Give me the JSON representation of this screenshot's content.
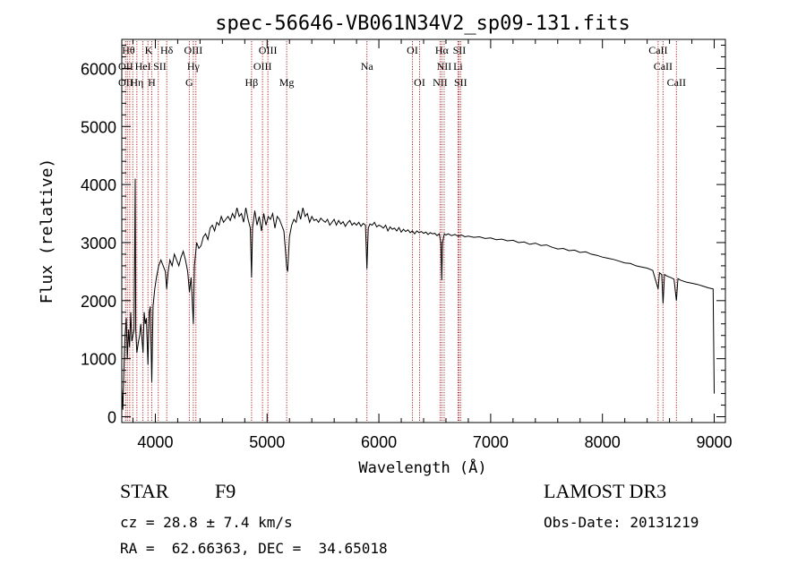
{
  "chart_data": {
    "type": "line",
    "title": "spec-56646-VB061N34V2_sp09-131.fits",
    "xlabel": "Wavelength (Å)",
    "ylabel": "Flux (relative)",
    "xlim": [
      3700,
      9100
    ],
    "ylim": [
      -100,
      6500
    ],
    "xticks": [
      4000,
      5000,
      6000,
      7000,
      8000,
      9000
    ],
    "xtick_labels": [
      "4000",
      "5000",
      "6000",
      "7000",
      "8000",
      "9000"
    ],
    "yticks": [
      0,
      1000,
      2000,
      3000,
      4000,
      5000,
      6000
    ],
    "ytick_labels": [
      "0",
      "1000",
      "2000",
      "3000",
      "4000",
      "5000",
      "6000"
    ],
    "x_minor_step": 200,
    "y_minor_step": 200,
    "series": [
      {
        "name": "spectrum",
        "color": "#000000",
        "points": [
          [
            3700,
            500
          ],
          [
            3710,
            120
          ],
          [
            3720,
            900
          ],
          [
            3730,
            1400
          ],
          [
            3740,
            1700
          ],
          [
            3750,
            1000
          ],
          [
            3760,
            1500
          ],
          [
            3770,
            1200
          ],
          [
            3780,
            1800
          ],
          [
            3790,
            1300
          ],
          [
            3800,
            1400
          ],
          [
            3810,
            1500
          ],
          [
            3820,
            4100
          ],
          [
            3825,
            1500
          ],
          [
            3835,
            1100
          ],
          [
            3850,
            1300
          ],
          [
            3860,
            1400
          ],
          [
            3870,
            1600
          ],
          [
            3880,
            1350
          ],
          [
            3890,
            1100
          ],
          [
            3900,
            1800
          ],
          [
            3910,
            1600
          ],
          [
            3920,
            1700
          ],
          [
            3934,
            900
          ],
          [
            3945,
            1800
          ],
          [
            3955,
            1900
          ],
          [
            3968,
            600
          ],
          [
            3980,
            1900
          ],
          [
            3995,
            2200
          ],
          [
            4010,
            2400
          ],
          [
            4030,
            2600
          ],
          [
            4050,
            2700
          ],
          [
            4070,
            2600
          ],
          [
            4090,
            2500
          ],
          [
            4101,
            2200
          ],
          [
            4115,
            2500
          ],
          [
            4130,
            2700
          ],
          [
            4150,
            2600
          ],
          [
            4170,
            2800
          ],
          [
            4190,
            2700
          ],
          [
            4210,
            2600
          ],
          [
            4230,
            2750
          ],
          [
            4250,
            2850
          ],
          [
            4270,
            2700
          ],
          [
            4290,
            2500
          ],
          [
            4305,
            2150
          ],
          [
            4320,
            2400
          ],
          [
            4340,
            1600
          ],
          [
            4350,
            2600
          ],
          [
            4370,
            3000
          ],
          [
            4390,
            2900
          ],
          [
            4410,
            2950
          ],
          [
            4430,
            3100
          ],
          [
            4450,
            3150
          ],
          [
            4470,
            3050
          ],
          [
            4490,
            3250
          ],
          [
            4510,
            3300
          ],
          [
            4530,
            3200
          ],
          [
            4550,
            3350
          ],
          [
            4570,
            3300
          ],
          [
            4590,
            3450
          ],
          [
            4610,
            3350
          ],
          [
            4630,
            3400
          ],
          [
            4650,
            3450
          ],
          [
            4670,
            3380
          ],
          [
            4690,
            3500
          ],
          [
            4710,
            3420
          ],
          [
            4730,
            3600
          ],
          [
            4750,
            3450
          ],
          [
            4770,
            3500
          ],
          [
            4790,
            3350
          ],
          [
            4810,
            3600
          ],
          [
            4830,
            3400
          ],
          [
            4850,
            3250
          ],
          [
            4861,
            2400
          ],
          [
            4870,
            3250
          ],
          [
            4890,
            3550
          ],
          [
            4910,
            3300
          ],
          [
            4930,
            3450
          ],
          [
            4950,
            3200
          ],
          [
            4970,
            3500
          ],
          [
            4990,
            3300
          ],
          [
            5010,
            3450
          ],
          [
            5030,
            3400
          ],
          [
            5050,
            3500
          ],
          [
            5070,
            3250
          ],
          [
            5090,
            3450
          ],
          [
            5110,
            3400
          ],
          [
            5130,
            3300
          ],
          [
            5150,
            3200
          ],
          [
            5167,
            2800
          ],
          [
            5173,
            2600
          ],
          [
            5184,
            2500
          ],
          [
            5200,
            3100
          ],
          [
            5220,
            3300
          ],
          [
            5240,
            3400
          ],
          [
            5260,
            3350
          ],
          [
            5280,
            3550
          ],
          [
            5300,
            3400
          ],
          [
            5320,
            3600
          ],
          [
            5340,
            3450
          ],
          [
            5360,
            3500
          ],
          [
            5380,
            3350
          ],
          [
            5400,
            3450
          ],
          [
            5420,
            3380
          ],
          [
            5440,
            3400
          ],
          [
            5460,
            3350
          ],
          [
            5480,
            3420
          ],
          [
            5500,
            3380
          ],
          [
            5520,
            3350
          ],
          [
            5540,
            3400
          ],
          [
            5560,
            3300
          ],
          [
            5580,
            3350
          ],
          [
            5600,
            3400
          ],
          [
            5620,
            3300
          ],
          [
            5640,
            3380
          ],
          [
            5660,
            3320
          ],
          [
            5680,
            3360
          ],
          [
            5700,
            3280
          ],
          [
            5720,
            3340
          ],
          [
            5740,
            3380
          ],
          [
            5760,
            3300
          ],
          [
            5780,
            3340
          ],
          [
            5800,
            3300
          ],
          [
            5820,
            3350
          ],
          [
            5840,
            3280
          ],
          [
            5860,
            3330
          ],
          [
            5880,
            3300
          ],
          [
            5893,
            2550
          ],
          [
            5905,
            3250
          ],
          [
            5920,
            3320
          ],
          [
            5940,
            3300
          ],
          [
            5960,
            3350
          ],
          [
            5980,
            3270
          ],
          [
            6000,
            3300
          ],
          [
            6020,
            3280
          ],
          [
            6040,
            3250
          ],
          [
            6060,
            3300
          ],
          [
            6080,
            3200
          ],
          [
            6100,
            3270
          ],
          [
            6120,
            3230
          ],
          [
            6140,
            3250
          ],
          [
            6160,
            3200
          ],
          [
            6180,
            3260
          ],
          [
            6200,
            3180
          ],
          [
            6220,
            3230
          ],
          [
            6240,
            3190
          ],
          [
            6260,
            3220
          ],
          [
            6280,
            3170
          ],
          [
            6300,
            3200
          ],
          [
            6320,
            3150
          ],
          [
            6340,
            3200
          ],
          [
            6360,
            3170
          ],
          [
            6380,
            3190
          ],
          [
            6400,
            3160
          ],
          [
            6420,
            3180
          ],
          [
            6440,
            3140
          ],
          [
            6460,
            3170
          ],
          [
            6480,
            3150
          ],
          [
            6500,
            3160
          ],
          [
            6520,
            3120
          ],
          [
            6540,
            3150
          ],
          [
            6555,
            3000
          ],
          [
            6563,
            2350
          ],
          [
            6570,
            3000
          ],
          [
            6585,
            3150
          ],
          [
            6600,
            3130
          ],
          [
            6620,
            3150
          ],
          [
            6650,
            3120
          ],
          [
            6680,
            3140
          ],
          [
            6710,
            3110
          ],
          [
            6740,
            3130
          ],
          [
            6770,
            3100
          ],
          [
            6800,
            3110
          ],
          [
            6850,
            3090
          ],
          [
            6900,
            3100
          ],
          [
            6950,
            3070
          ],
          [
            7000,
            3080
          ],
          [
            7050,
            3050
          ],
          [
            7100,
            3060
          ],
          [
            7150,
            3030
          ],
          [
            7200,
            3040
          ],
          [
            7250,
            3000
          ],
          [
            7300,
            3010
          ],
          [
            7350,
            2970
          ],
          [
            7400,
            2990
          ],
          [
            7450,
            2950
          ],
          [
            7500,
            2960
          ],
          [
            7550,
            2920
          ],
          [
            7600,
            2890
          ],
          [
            7650,
            2900
          ],
          [
            7700,
            2860
          ],
          [
            7750,
            2870
          ],
          [
            7800,
            2830
          ],
          [
            7850,
            2840
          ],
          [
            7900,
            2800
          ],
          [
            7950,
            2780
          ],
          [
            8000,
            2750
          ],
          [
            8050,
            2730
          ],
          [
            8100,
            2710
          ],
          [
            8150,
            2680
          ],
          [
            8200,
            2650
          ],
          [
            8250,
            2640
          ],
          [
            8300,
            2600
          ],
          [
            8350,
            2580
          ],
          [
            8400,
            2560
          ],
          [
            8450,
            2520
          ],
          [
            8498,
            2200
          ],
          [
            8510,
            2480
          ],
          [
            8530,
            2450
          ],
          [
            8542,
            1950
          ],
          [
            8555,
            2450
          ],
          [
            8580,
            2420
          ],
          [
            8610,
            2400
          ],
          [
            8640,
            2370
          ],
          [
            8662,
            2000
          ],
          [
            8675,
            2380
          ],
          [
            8700,
            2350
          ],
          [
            8750,
            2320
          ],
          [
            8800,
            2300
          ],
          [
            8850,
            2280
          ],
          [
            8900,
            2250
          ],
          [
            8950,
            2220
          ],
          [
            8990,
            2200
          ],
          [
            9000,
            400
          ]
        ]
      }
    ],
    "line_color": "#b22222",
    "lines": [
      {
        "x": 3734,
        "label": "",
        "row": 1
      },
      {
        "x": 3750,
        "label": "",
        "row": 1
      },
      {
        "x": 3771,
        "label": "",
        "row": 1
      },
      {
        "x": 3798,
        "label": "",
        "row": 1
      },
      {
        "x": 3835,
        "label": "",
        "row": 1
      },
      {
        "x": 3889,
        "label": "",
        "row": 1
      },
      {
        "x": 3934,
        "label": "",
        "row": 1
      },
      {
        "x": 3968,
        "label": "",
        "row": 1
      },
      {
        "x": 4026,
        "label": "",
        "row": 1
      },
      {
        "x": 4102,
        "label": "",
        "row": 1
      },
      {
        "x": 4304,
        "label": "",
        "row": 1
      },
      {
        "x": 4340,
        "label": "",
        "row": 1
      },
      {
        "x": 4363,
        "label": "",
        "row": 1
      },
      {
        "x": 4861,
        "label": "",
        "row": 1
      },
      {
        "x": 4959,
        "label": "",
        "row": 1
      },
      {
        "x": 5007,
        "label": "",
        "row": 1
      },
      {
        "x": 5175,
        "label": "",
        "row": 1
      },
      {
        "x": 5893,
        "label": "",
        "row": 1
      },
      {
        "x": 6300,
        "label": "",
        "row": 1
      },
      {
        "x": 6364,
        "label": "",
        "row": 1
      },
      {
        "x": 6548,
        "label": "",
        "row": 1
      },
      {
        "x": 6563,
        "label": "",
        "row": 1
      },
      {
        "x": 6584,
        "label": "",
        "row": 1
      },
      {
        "x": 6708,
        "label": "",
        "row": 1
      },
      {
        "x": 6717,
        "label": "",
        "row": 1
      },
      {
        "x": 6731,
        "label": "",
        "row": 1
      },
      {
        "x": 8498,
        "label": "",
        "row": 1
      },
      {
        "x": 8542,
        "label": "",
        "row": 1
      },
      {
        "x": 8662,
        "label": "",
        "row": 1
      }
    ],
    "line_labels": [
      {
        "x": 3760,
        "row": 0,
        "text": "Hθ"
      },
      {
        "x": 3940,
        "row": 0,
        "text": "K"
      },
      {
        "x": 4102,
        "row": 0,
        "text": "Hδ"
      },
      {
        "x": 4340,
        "row": 0,
        "text": "OIII"
      },
      {
        "x": 5007,
        "row": 0,
        "text": "OIII"
      },
      {
        "x": 6300,
        "row": 0,
        "text": "OI"
      },
      {
        "x": 6563,
        "row": 0,
        "text": "Hα"
      },
      {
        "x": 6720,
        "row": 0,
        "text": "SII"
      },
      {
        "x": 8498,
        "row": 0,
        "text": "CaII"
      },
      {
        "x": 3735,
        "row": 1,
        "text": "OII"
      },
      {
        "x": 3889,
        "row": 1,
        "text": "HeI"
      },
      {
        "x": 4040,
        "row": 1,
        "text": "SII"
      },
      {
        "x": 4340,
        "row": 1,
        "text": "Hγ"
      },
      {
        "x": 4959,
        "row": 1,
        "text": "OIII"
      },
      {
        "x": 5893,
        "row": 1,
        "text": "Na"
      },
      {
        "x": 6584,
        "row": 1,
        "text": "NII"
      },
      {
        "x": 6708,
        "row": 1,
        "text": "Li"
      },
      {
        "x": 8542,
        "row": 1,
        "text": "CaII"
      },
      {
        "x": 3735,
        "row": 2,
        "text": "OII"
      },
      {
        "x": 3835,
        "row": 2,
        "text": "Hη"
      },
      {
        "x": 3968,
        "row": 2,
        "text": "H"
      },
      {
        "x": 4304,
        "row": 2,
        "text": "G"
      },
      {
        "x": 4861,
        "row": 2,
        "text": "Hβ"
      },
      {
        "x": 5175,
        "row": 2,
        "text": "Mg"
      },
      {
        "x": 6364,
        "row": 2,
        "text": "OI"
      },
      {
        "x": 6548,
        "row": 2,
        "text": "NII"
      },
      {
        "x": 6731,
        "row": 2,
        "text": "SII"
      },
      {
        "x": 8662,
        "row": 2,
        "text": "CaII"
      }
    ]
  },
  "info": {
    "class_label": "STAR",
    "subclass": "F9",
    "survey": "LAMOST DR3",
    "cz": "cz = 28.8 ± 7.4 km/s",
    "obs_date": "Obs-Date: 20131219",
    "radec": "RA =  62.66363, DEC =  34.65018"
  }
}
